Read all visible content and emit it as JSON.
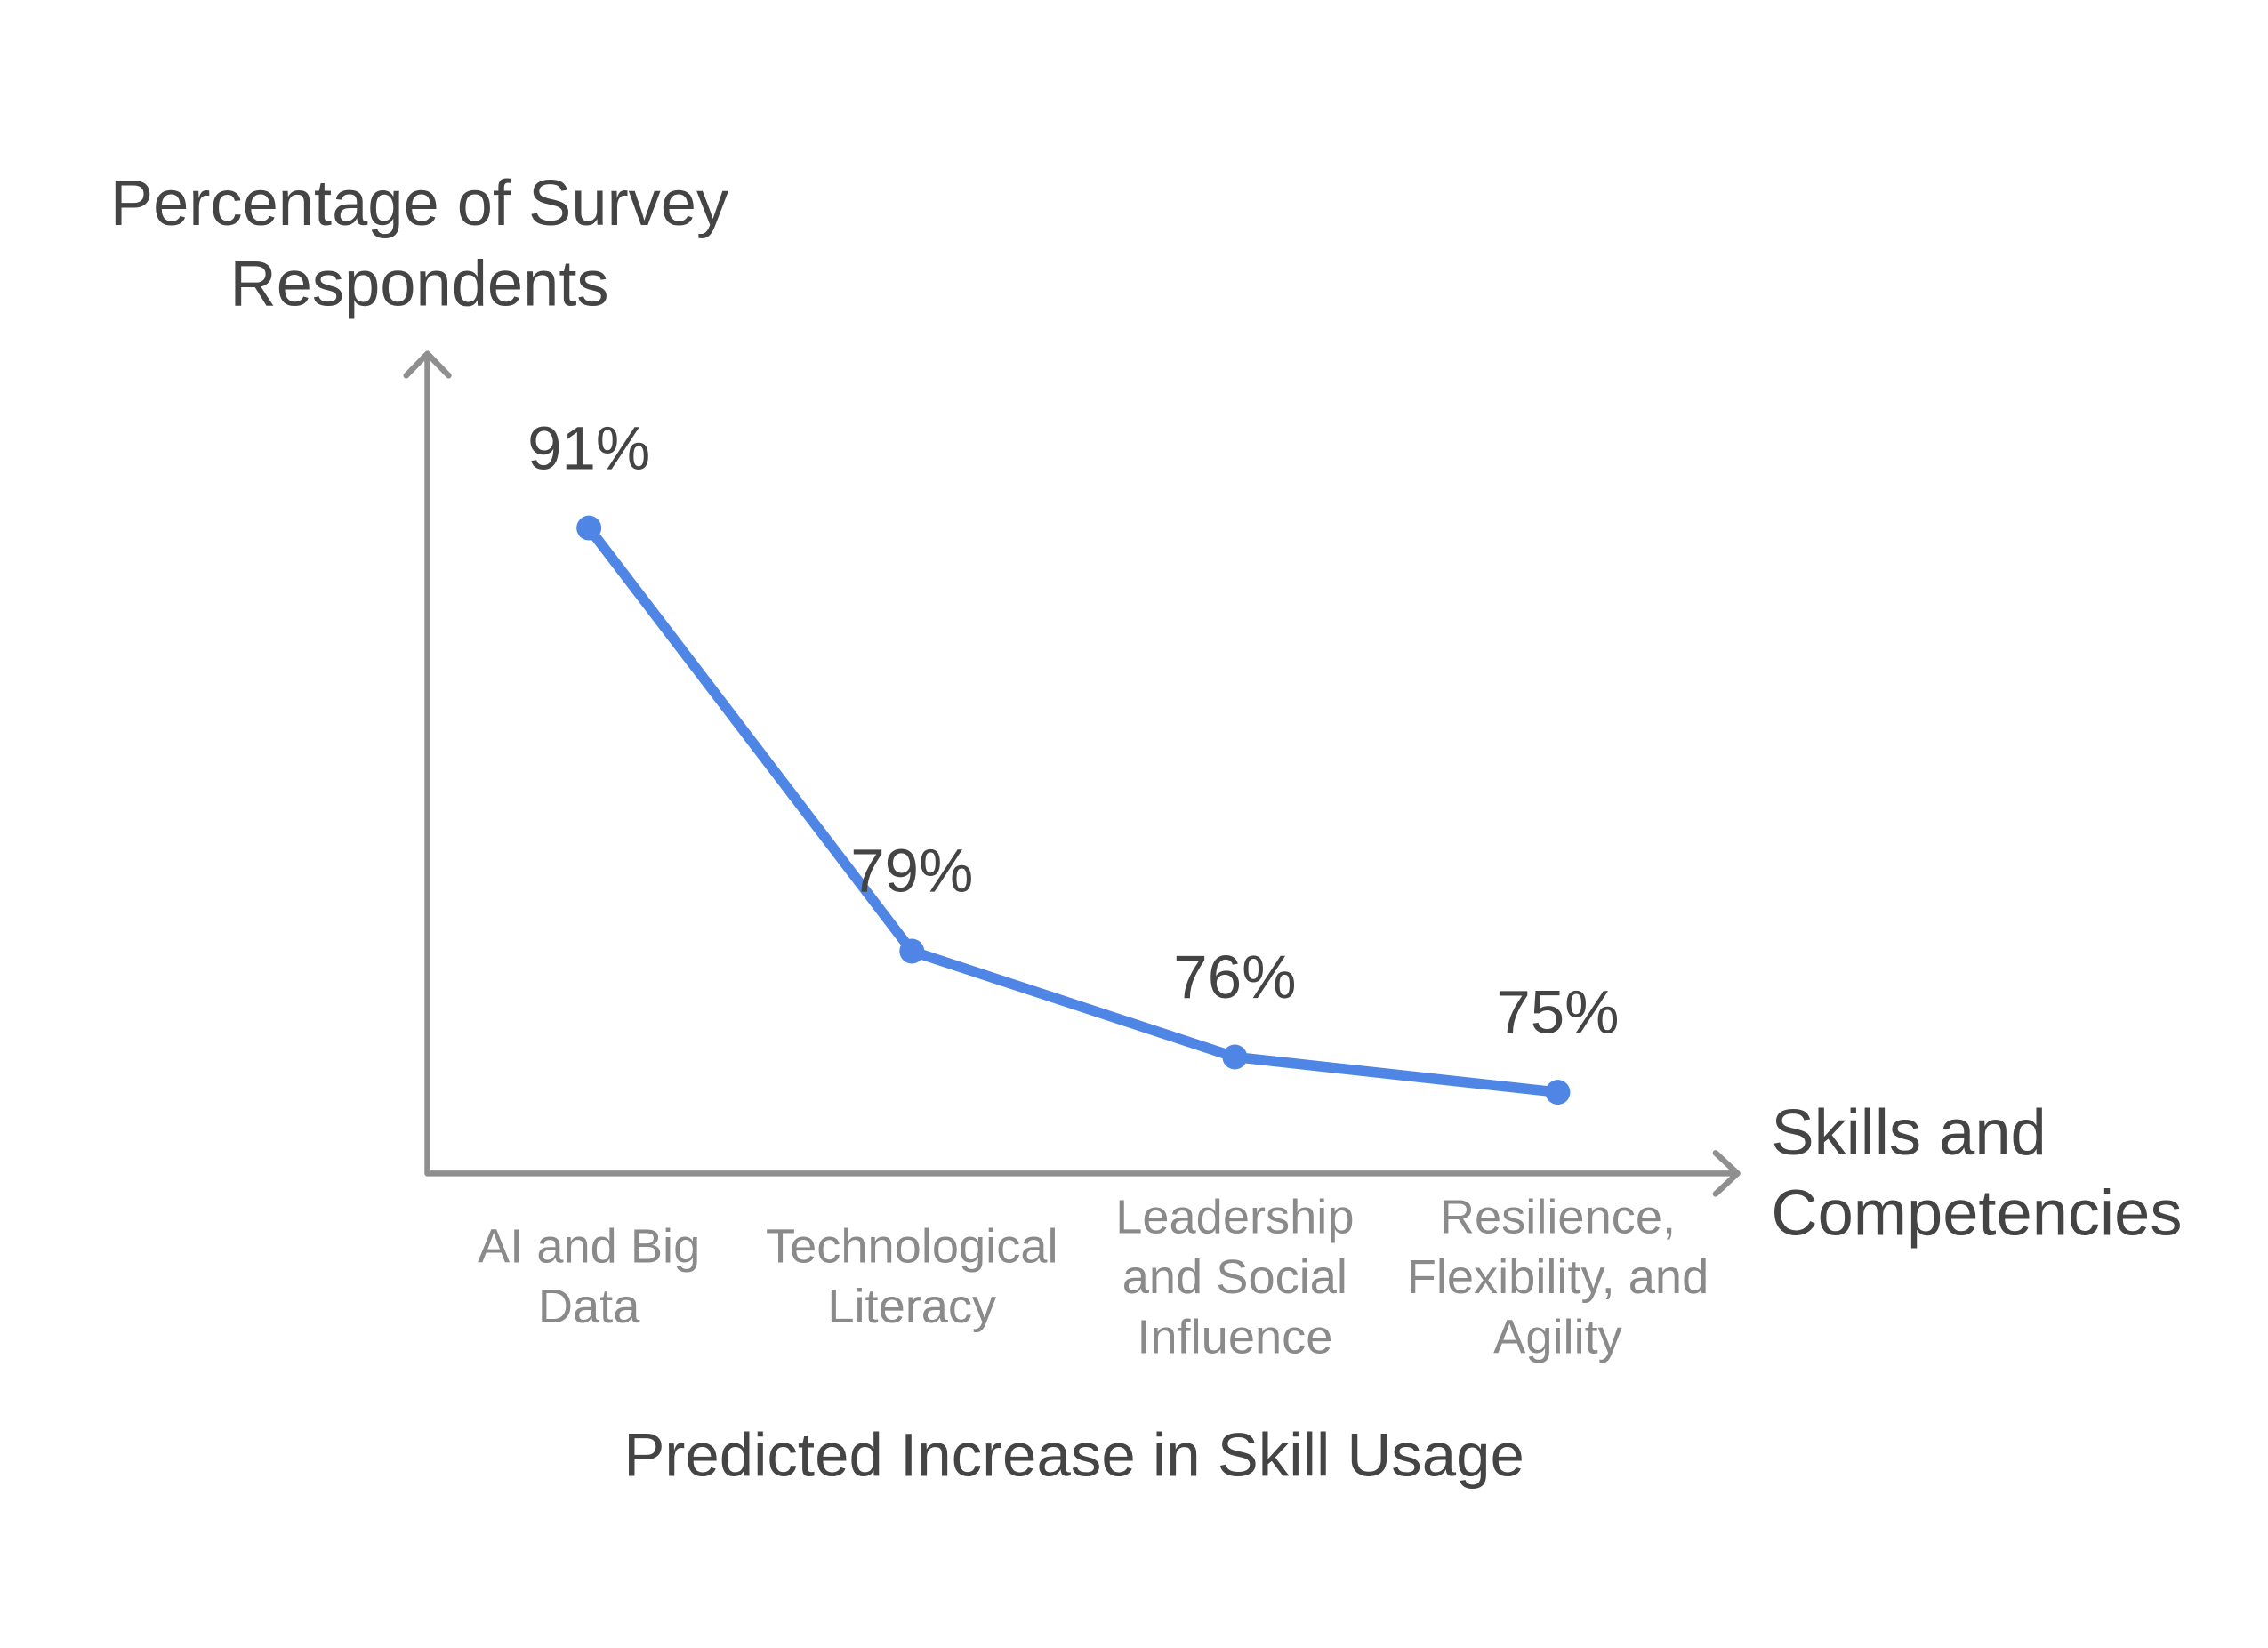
{
  "chart_data": {
    "type": "line",
    "title": "Predicted Increase in Skill Usage",
    "ylabel": "Percentage of Survey Respondents",
    "xlabel": "Skills and Competencies",
    "categories": [
      "AI and Big Data",
      "Technological Literacy",
      "Leadership and Social Influence",
      "Resilience, Flexibility, and Agility"
    ],
    "values": [
      91,
      79,
      76,
      75
    ],
    "value_labels": [
      "91%",
      "79%",
      "76%",
      "75%"
    ],
    "color": "#4f86e6",
    "ylim": [
      72.7,
      95.9
    ]
  }
}
